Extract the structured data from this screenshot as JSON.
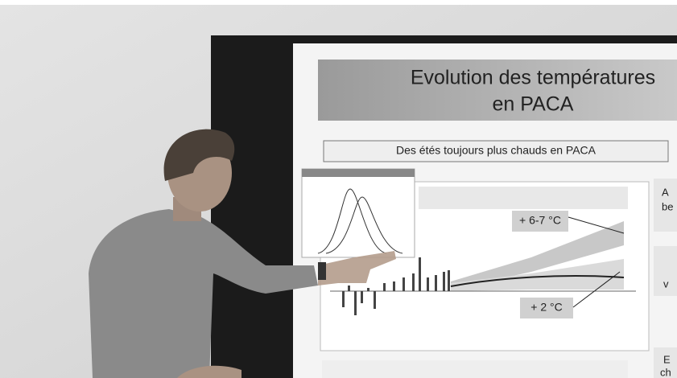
{
  "slide": {
    "title": [
      "Evolution des températures",
      "en PACA"
    ],
    "subtitle": "Des étés toujours plus chauds en PACA",
    "annotations": [
      "+ 6-7 °C",
      "+ 2 °C"
    ],
    "side_text": [
      "A",
      "be",
      "v",
      "E",
      "ch"
    ]
  }
}
